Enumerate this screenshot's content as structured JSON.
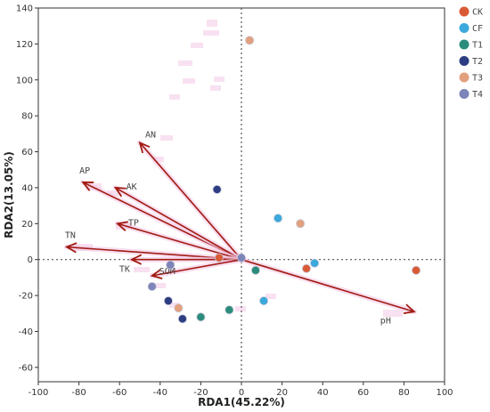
{
  "chart_data": {
    "type": "scatter",
    "xlabel": "RDA1(45.22%)",
    "ylabel": "RDA2(13.05%)",
    "xlim": [
      -100,
      100
    ],
    "ylim": [
      -68,
      140
    ],
    "xticks": [
      -100,
      -80,
      -60,
      -40,
      -20,
      0,
      20,
      40,
      60,
      80,
      100
    ],
    "yticks": [
      -60,
      -40,
      -20,
      0,
      20,
      40,
      60,
      80,
      100,
      120,
      140
    ],
    "reference_lines": {
      "x": 0,
      "y": 0,
      "style": "dotted"
    },
    "arrows": [
      {
        "label": "AN",
        "x": -50,
        "y": 65
      },
      {
        "label": "AP",
        "x": -78,
        "y": 43
      },
      {
        "label": "AK",
        "x": -62,
        "y": 40
      },
      {
        "label": "TP",
        "x": -61,
        "y": 20
      },
      {
        "label": "TN",
        "x": -86,
        "y": 7
      },
      {
        "label": "TK",
        "x": -54,
        "y": 0
      },
      {
        "label": "SOM",
        "x": -44,
        "y": -9
      },
      {
        "label": "pH",
        "x": 85,
        "y": -29
      }
    ],
    "arrow_color": "#a11b12",
    "series": [
      {
        "name": "CK",
        "color": "#d95b35",
        "points": [
          [
            32,
            -5
          ],
          [
            86,
            -6
          ],
          [
            -11,
            1
          ]
        ]
      },
      {
        "name": "CF",
        "color": "#3ba9dc",
        "points": [
          [
            36,
            -2
          ],
          [
            18,
            23
          ],
          [
            11,
            -23
          ]
        ]
      },
      {
        "name": "T1",
        "color": "#2b8c7c",
        "points": [
          [
            7,
            -6
          ],
          [
            -20,
            -32
          ],
          [
            -6,
            -28
          ]
        ]
      },
      {
        "name": "T2",
        "color": "#2c3d82",
        "points": [
          [
            -12,
            39
          ],
          [
            -36,
            -23
          ],
          [
            -29,
            -33
          ]
        ]
      },
      {
        "name": "T3",
        "color": "#e3a07e",
        "points": [
          [
            4,
            122
          ],
          [
            29,
            20
          ],
          [
            -31,
            -27
          ]
        ]
      },
      {
        "name": "T4",
        "color": "#7c84b8",
        "points": [
          [
            -44,
            -15
          ],
          [
            -35,
            -3
          ],
          [
            0,
            1
          ]
        ]
      }
    ],
    "legend_position": "right",
    "grid": false
  }
}
